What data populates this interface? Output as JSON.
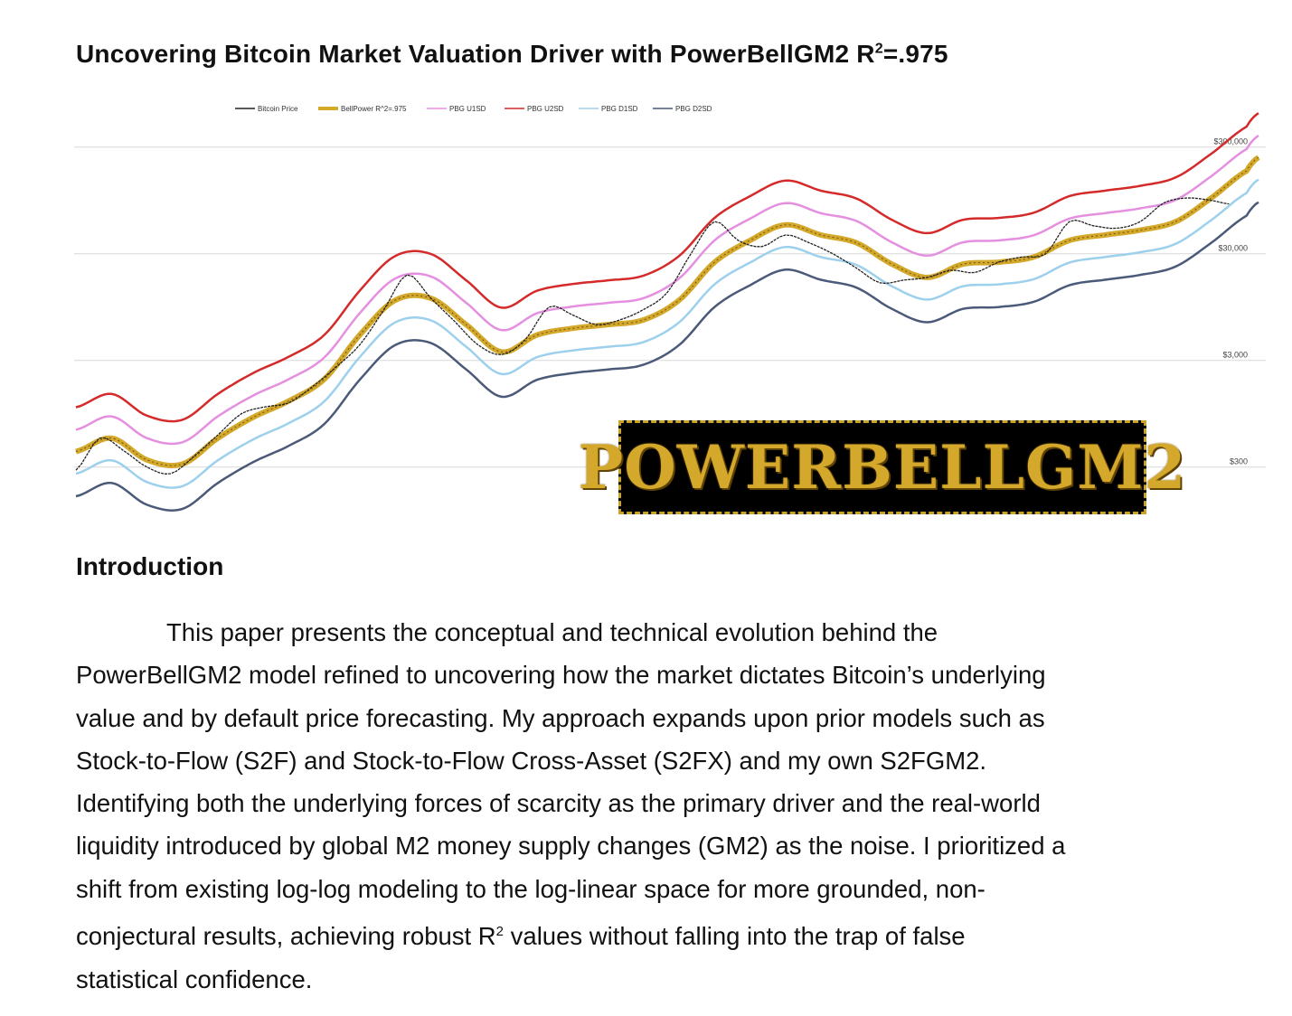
{
  "title": {
    "text": "Uncovering Bitcoin Market Valuation Driver with PowerBellGM2 R",
    "sup": "2",
    "suffix": "=.975"
  },
  "colors": {
    "bitcoin_price": "#222222",
    "bellpower": "#d4a82a",
    "u1sd": "#e58fe0",
    "u2sd": "#d42a2a",
    "d1sd": "#9dd0ec",
    "d2sd": "#4a5a78"
  },
  "chart_data": {
    "type": "line",
    "y_scale": "log",
    "y_ticks": [
      "$300,000",
      "$30,000",
      "$3,000",
      "$300"
    ],
    "y_tick_values": [
      300000,
      30000,
      3000,
      300
    ],
    "ylim": [
      100,
      400000
    ],
    "x_range": [
      0,
      100
    ],
    "x_tick_labels": [],
    "legend_position": "top",
    "legend": [
      "Bitcoin Price",
      "BellPower R^2=.975",
      "PBG U1SD",
      "PBG U2SD",
      "PBG D1SD",
      "PBG D2SD"
    ],
    "bellpower": {
      "x": [
        0,
        3,
        6,
        9,
        12,
        15,
        18,
        21,
        24,
        27,
        30,
        33,
        36,
        39,
        42,
        45,
        48,
        51,
        54,
        57,
        60,
        63,
        66,
        69,
        72,
        75,
        78,
        81,
        84,
        87,
        90,
        93,
        96,
        99,
        100
      ],
      "y": [
        420,
        560,
        350,
        320,
        560,
        880,
        1250,
        2000,
        5200,
        11000,
        11500,
        6500,
        3600,
        5200,
        6000,
        6500,
        7200,
        11000,
        25000,
        40000,
        56000,
        45000,
        38000,
        24000,
        18000,
        24000,
        25000,
        28000,
        40000,
        45000,
        50000,
        60000,
        100000,
        180000,
        240000
      ]
    },
    "series": [
      {
        "name": "PBG U2SD",
        "multiplier": 2.6
      },
      {
        "name": "PBG U1SD",
        "multiplier": 1.6
      },
      {
        "name": "PBG D1SD",
        "multiplier": 0.62
      },
      {
        "name": "PBG D2SD",
        "multiplier": 0.38
      }
    ],
    "bitcoin_price": {
      "x": [
        0,
        2,
        4,
        6,
        8,
        10,
        12,
        14,
        16,
        18,
        20,
        22,
        24,
        26,
        28,
        30,
        32,
        34,
        36,
        38,
        40,
        42,
        44,
        46,
        48,
        50,
        52,
        54,
        56,
        58,
        60,
        62,
        64,
        66,
        68,
        70,
        72,
        74,
        76,
        78,
        80,
        82,
        84,
        86,
        88,
        90,
        92,
        94,
        96,
        97.5
      ],
      "y": [
        280,
        560,
        430,
        300,
        260,
        380,
        600,
        950,
        1100,
        1200,
        1700,
        2600,
        4200,
        8800,
        19000,
        11500,
        7000,
        4200,
        3400,
        4700,
        9500,
        8000,
        6500,
        7200,
        9000,
        13000,
        30000,
        60000,
        40000,
        35000,
        45000,
        38000,
        30000,
        22000,
        16000,
        17000,
        18000,
        21000,
        20000,
        25000,
        28000,
        30000,
        60000,
        55000,
        52000,
        60000,
        90000,
        100000,
        95000,
        88000
      ]
    }
  },
  "logo": {
    "text": "POWERBELLGM2"
  },
  "intro": {
    "heading": "Introduction",
    "lines": [
      "This paper presents the conceptual and technical evolution behind the",
      "PowerBellGM2 model refined to uncovering how the market dictates Bitcoin’s underlying",
      "value and by default price forecasting.  My approach expands upon prior models such as",
      "Stock-to-Flow (S2F) and Stock-to-Flow Cross-Asset (S2FX) and my own S2FGM2.",
      "Identifying both the underlying forces of scarcity as the primary driver and the real-world",
      "liquidity introduced by global M2 money supply changes (GM2) as the noise.  I prioritized a",
      "shift from existing log-log modeling to the log-linear space for more grounded, non-"
    ],
    "line8_pre": "conjectural results, achieving robust R",
    "line8_sup": "2",
    "line8_post": " values without falling into the trap of false",
    "line9": "statistical confidence."
  }
}
